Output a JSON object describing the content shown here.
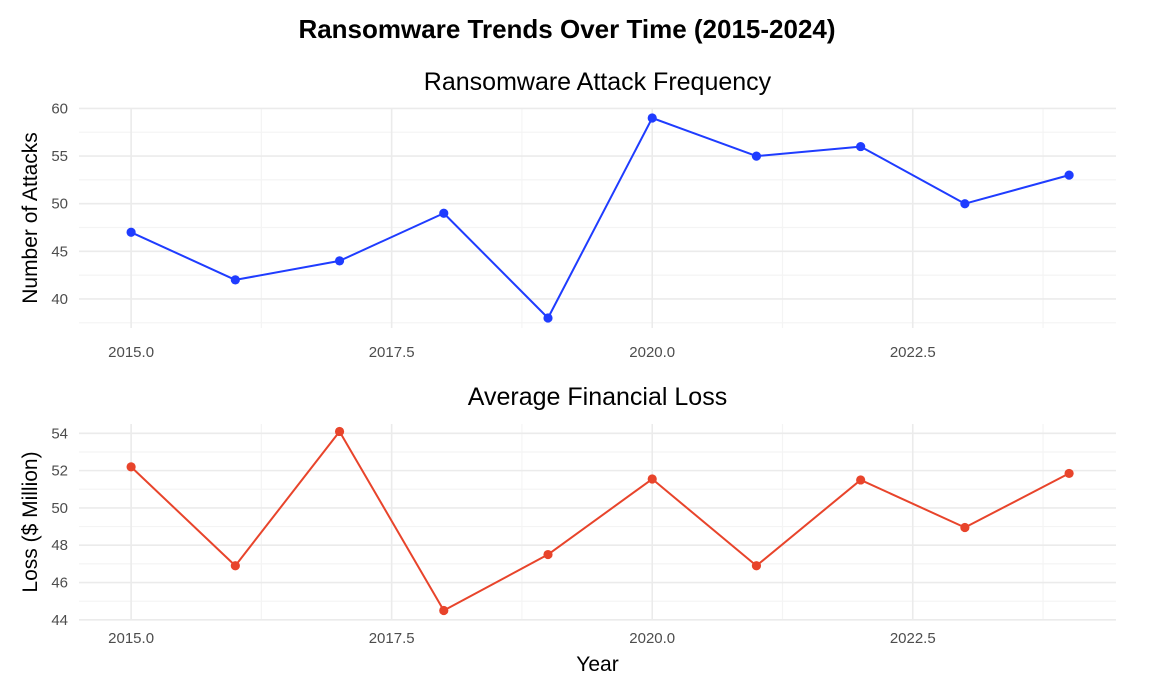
{
  "chart_data": [
    {
      "type": "line",
      "title": "Ransomware Attack Frequency",
      "xlabel": "",
      "ylabel": "Number of Attacks",
      "x": [
        2015,
        2016,
        2017,
        2018,
        2019,
        2020,
        2021,
        2022,
        2023,
        2024
      ],
      "series": [
        {
          "values": [
            47,
            42,
            44,
            49,
            38,
            59,
            55,
            56,
            50,
            53
          ],
          "color": "#1f3cff"
        }
      ],
      "xlim": [
        2014.5,
        2024.45
      ],
      "ylim": [
        36.95,
        60.05
      ],
      "xticks": [
        2015,
        2017.5,
        2020,
        2022.5
      ],
      "xtick_labels": [
        "2015.0",
        "2017.5",
        "2020.0",
        "2022.5"
      ],
      "yticks": [
        40,
        45,
        50,
        55,
        60
      ],
      "ytick_labels": [
        "40",
        "45",
        "50",
        "55",
        "60"
      ],
      "grid": true
    },
    {
      "type": "line",
      "title": "Average Financial Loss",
      "xlabel": "Year",
      "ylabel": "Loss ($ Million)",
      "x": [
        2015,
        2016,
        2017,
        2018,
        2019,
        2020,
        2021,
        2022,
        2023,
        2024
      ],
      "series": [
        {
          "values": [
            52.2,
            46.9,
            54.1,
            44.5,
            47.5,
            51.55,
            46.9,
            51.5,
            48.95,
            51.85
          ],
          "color": "#e8442b"
        }
      ],
      "xlim": [
        2014.5,
        2024.45
      ],
      "ylim": [
        43.99,
        54.5
      ],
      "xticks": [
        2015,
        2017.5,
        2020,
        2022.5
      ],
      "xtick_labels": [
        "2015.0",
        "2017.5",
        "2020.0",
        "2022.5"
      ],
      "yticks": [
        44,
        46,
        48,
        50,
        52,
        54
      ],
      "ytick_labels": [
        "44",
        "46",
        "48",
        "50",
        "52",
        "54"
      ],
      "grid": true
    }
  ],
  "suptitle": "Ransomware Trends Over Time (2015-2024)"
}
